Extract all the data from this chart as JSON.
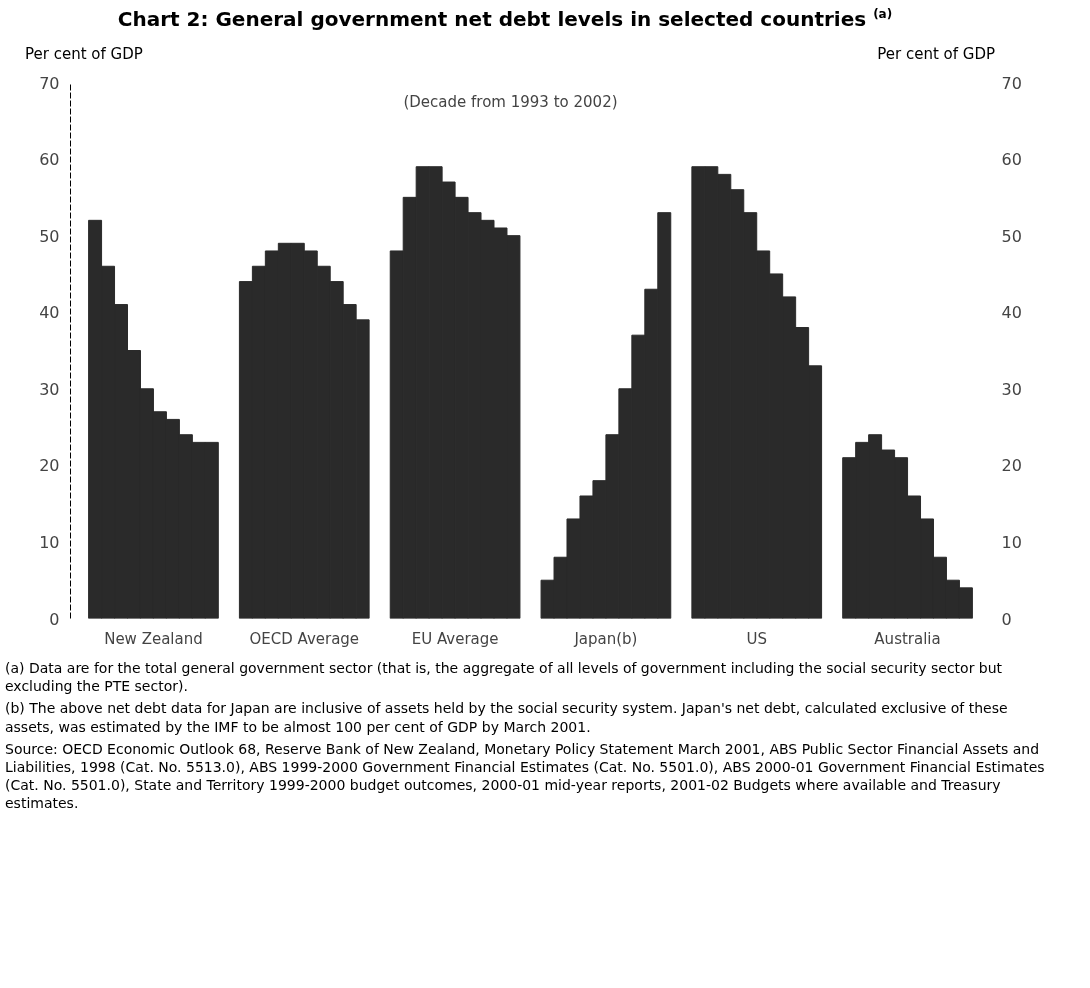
{
  "chart_data": {
    "type": "bar",
    "title": "Chart 2:  General government net debt levels in selected countries $^{(a)}$",
    "subtitle": "(Decade from 1993 to 2002)",
    "ylabel": "Per cent of GDP",
    "y2label": "Per cent of GDP",
    "categories": [
      "New Zealand",
      "OECD Average",
      "EU Average",
      "Japan(b)",
      "US",
      "Australia"
    ],
    "series": [
      {
        "color": "#2a2a2a",
        "values": [
          52,
          44,
          48,
          5,
          59,
          21
        ]
      },
      {
        "color": "#2a2a2a",
        "values": [
          46,
          46,
          55,
          8,
          59,
          23
        ]
      },
      {
        "color": "#2a2a2a",
        "values": [
          41,
          48,
          59,
          13,
          58,
          24
        ]
      },
      {
        "color": "#2a2a2a",
        "values": [
          35,
          49,
          59,
          16,
          56,
          22
        ]
      },
      {
        "color": "#2a2a2a",
        "values": [
          30,
          49,
          57,
          18,
          53,
          21
        ]
      },
      {
        "color": "#2a2a2a",
        "values": [
          27,
          48,
          55,
          24,
          48,
          16
        ]
      },
      {
        "color": "#2a2a2a",
        "values": [
          26,
          46,
          53,
          30,
          45,
          13
        ]
      },
      {
        "color": "#2a2a2a",
        "values": [
          24,
          44,
          52,
          37,
          42,
          8
        ]
      },
      {
        "color": "#2a2a2a",
        "values": [
          23,
          41,
          51,
          43,
          38,
          5
        ]
      },
      {
        "color": "#2a2a2a",
        "values": [
          23,
          39,
          50,
          53,
          33,
          4
        ]
      }
    ],
    "ylim": [
      0,
      70
    ],
    "yticks": [
      0,
      10,
      20,
      30,
      40,
      50,
      60,
      70
    ],
    "y2lim": [
      0,
      70
    ],
    "y2ticks": [
      0,
      10,
      20,
      30,
      40,
      50,
      60,
      70
    ],
    "grid": false,
    "annotations": [
      "(a)  Data are for the total general government sector (that is, the aggregate of all levels of government including the social security sector but excluding the PTE sector).",
      "(b)  The above net debt data for Japan are inclusive of assets held by the social security system. Japan's net debt, calculated exclusive of these assets, was estimated by the IMF to be almost 100 per cent of GDP by March 2001.",
      "Source: OECD Economic Outlook 68, Reserve Bank of New Zealand, Monetary Policy Statement March 2001, ABS Public Sector Financial Assets and Liabilities, 1998 (Cat. No. 5513.0), ABS 1999-2000 Government Financial Estimates (Cat. No. 5501.0), ABS 2000-01 Government Financial Estimates (Cat. No. 5501.0), State and Territory 1999-2000 budget outcomes, 2000-01 mid-year reports, 2001-02 Budgets where available and Treasury estimates."
    ]
  }
}
